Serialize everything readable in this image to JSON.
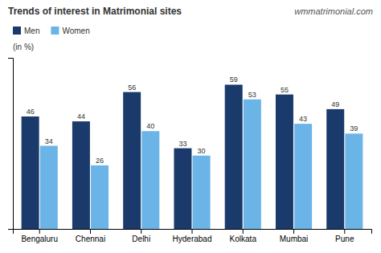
{
  "chart_data": {
    "type": "bar",
    "title": "Trends of interest in Matrimonial sites",
    "annotations": [
      "wmmatrimonial.com"
    ],
    "y_label": "(in %)",
    "categories": [
      "Bengaluru",
      "Chennai",
      "Delhi",
      "Hyderabad",
      "Kolkata",
      "Mumbai",
      "Pune"
    ],
    "series": [
      {
        "name": "Men",
        "color": "#1a3a6b",
        "values": [
          46,
          44,
          56,
          33,
          59,
          55,
          49
        ]
      },
      {
        "name": "Women",
        "color": "#6ab4e8",
        "values": [
          34,
          26,
          40,
          30,
          53,
          43,
          39
        ]
      }
    ],
    "ylim": [
      0,
      70
    ],
    "yticks": [],
    "tick_labels": "x",
    "data_labels": true,
    "legend": "top-left",
    "grid": false
  }
}
